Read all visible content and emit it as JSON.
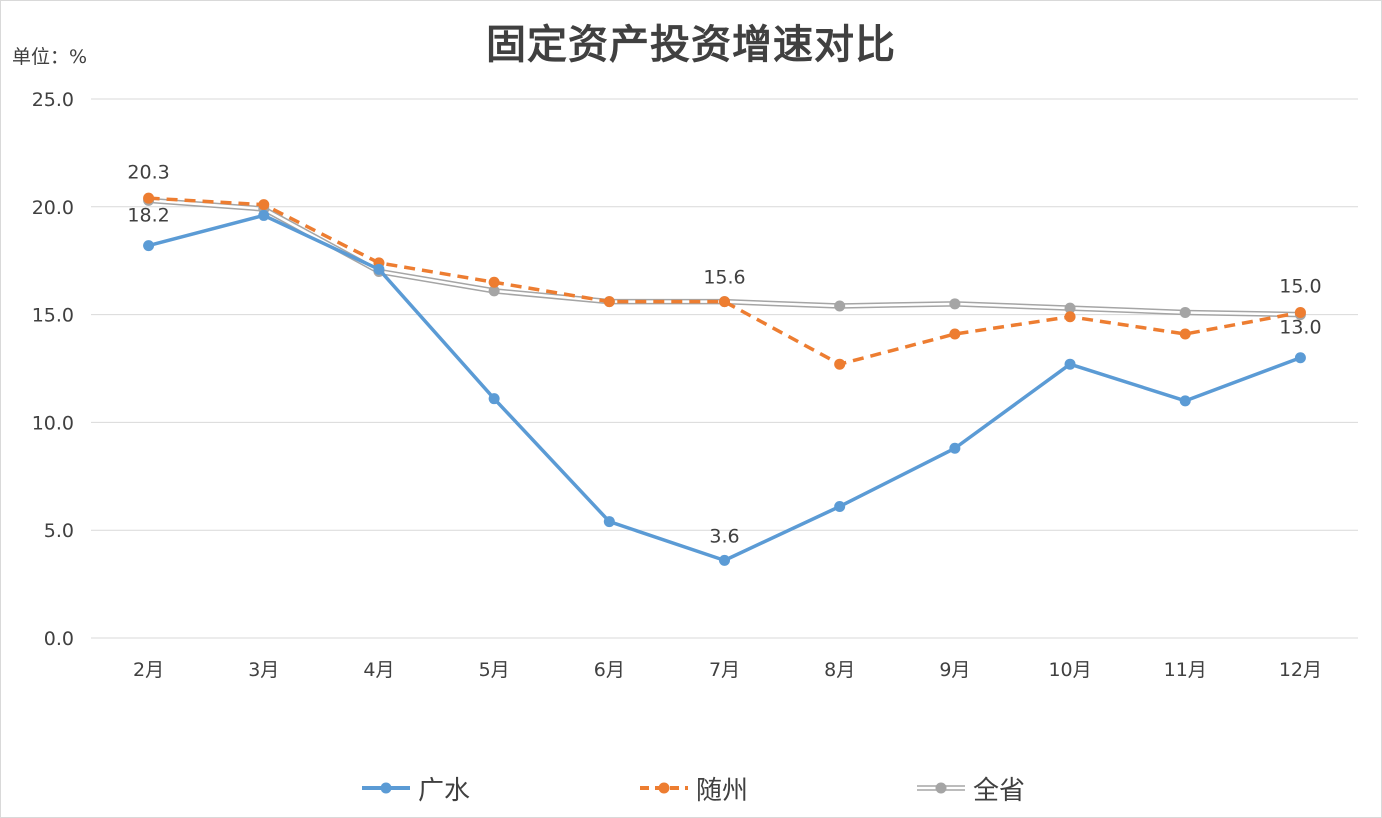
{
  "chart_data": {
    "type": "line",
    "title": "固定资产投资增速对比",
    "unit_label": "单位：%",
    "categories": [
      "2月",
      "3月",
      "4月",
      "5月",
      "6月",
      "7月",
      "8月",
      "9月",
      "10月",
      "11月",
      "12月"
    ],
    "ylim": [
      0,
      25
    ],
    "yticks": [
      "0.0",
      "5.0",
      "10.0",
      "15.0",
      "20.0",
      "25.0"
    ],
    "grid": true,
    "legend_position": "bottom",
    "series": [
      {
        "name": "广水",
        "color": "#5b9bd5",
        "style": "solid",
        "values": [
          18.2,
          19.6,
          17.1,
          11.1,
          5.4,
          3.6,
          6.1,
          8.8,
          12.7,
          11.0,
          13.0
        ]
      },
      {
        "name": "随州",
        "color": "#ed7d31",
        "style": "dashed",
        "values": [
          20.4,
          20.1,
          17.4,
          16.5,
          15.6,
          15.6,
          12.7,
          14.1,
          14.9,
          14.1,
          15.1
        ]
      },
      {
        "name": "全省",
        "color": "#a5a5a5",
        "style": "double",
        "values": [
          20.3,
          19.9,
          17.0,
          16.1,
          15.6,
          15.6,
          15.4,
          15.5,
          15.3,
          15.1,
          15.0
        ]
      }
    ],
    "data_labels": [
      {
        "text": "20.3",
        "series": 2,
        "index": 0,
        "pos": "above"
      },
      {
        "text": "18.2",
        "series": 0,
        "index": 0,
        "pos": "above"
      },
      {
        "text": "15.6",
        "series": 2,
        "index": 5,
        "pos": "above"
      },
      {
        "text": "3.6",
        "series": 0,
        "index": 5,
        "pos": "above"
      },
      {
        "text": "15.0",
        "series": 2,
        "index": 10,
        "pos": "above"
      },
      {
        "text": "13.0",
        "series": 0,
        "index": 10,
        "pos": "above"
      }
    ]
  }
}
